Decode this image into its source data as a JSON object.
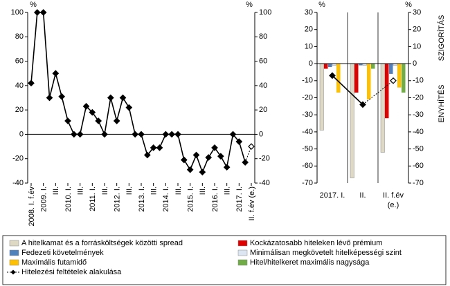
{
  "chart_data": [
    {
      "type": "line",
      "y_unit": "%",
      "y2_unit": "%",
      "categories": [
        "2008. I. f.év",
        null,
        "2009. I.",
        null,
        "III.",
        null,
        "2010. I.",
        null,
        "III.",
        null,
        "2011. I.",
        null,
        "III.",
        null,
        "2012. I.",
        null,
        "III.",
        null,
        "2013. I.",
        null,
        "III.",
        null,
        "2014. I.",
        null,
        "III.",
        null,
        "2015. I.",
        null,
        "III.",
        null,
        "2016. I.",
        null,
        "III.",
        null,
        "2017. I.",
        null,
        "II. f.év (e.)"
      ],
      "values": [
        42,
        100,
        100,
        30,
        50,
        31,
        11,
        0,
        0,
        23,
        18,
        11,
        0,
        30,
        11,
        30,
        22,
        0,
        0,
        -17,
        -11,
        -11,
        0,
        0,
        0,
        -21,
        -29,
        -17,
        -31,
        -19,
        -11,
        -18,
        -27,
        0,
        -6,
        -23,
        null
      ],
      "estimate_values": [
        null,
        null,
        null,
        null,
        null,
        null,
        null,
        null,
        null,
        null,
        null,
        null,
        null,
        null,
        null,
        null,
        null,
        null,
        null,
        null,
        null,
        null,
        null,
        null,
        null,
        null,
        null,
        null,
        null,
        null,
        null,
        null,
        null,
        null,
        null,
        null,
        -10
      ],
      "color": "#000000",
      "ylim": [
        -40,
        100
      ],
      "yticks": [
        -40,
        -20,
        0,
        20,
        40,
        60,
        80,
        100
      ],
      "y2lim": [
        -40,
        100
      ],
      "y2ticks": [
        -40,
        -20,
        0,
        20,
        40,
        60,
        80,
        100
      ]
    },
    {
      "type": "bar",
      "y_unit": "%",
      "y2_unit": "%",
      "y2_label_top": "SZIGORÍTÁS",
      "y2_label_bottom": "ENYHÍTÉS",
      "categories": [
        "2017. I.",
        "II.",
        "II. f.év (e.)"
      ],
      "series": [
        {
          "name": "A hitelkamat és a forrásköltségek közötti spread",
          "color": "#ddd9c3",
          "values": [
            -39,
            -67,
            -52
          ]
        },
        {
          "name": "Kockázatosabb hiteleken lévő prémium",
          "color": "#e00000",
          "values": [
            -3,
            -17,
            -32
          ]
        },
        {
          "name": "Fedezeti követelmények",
          "color": "#4f81bd",
          "values": [
            -2,
            -1,
            -6
          ]
        },
        {
          "name": "Minimálisan megkövetelt hitelképességi szint",
          "color": "#dce6f2",
          "values": [
            -1,
            -1,
            -1
          ]
        },
        {
          "name": "Maximális futamidő",
          "color": "#ffc000",
          "values": [
            -17,
            -21,
            -14
          ]
        },
        {
          "name": "Hitel/hitelkeret maximális nagysága",
          "color": "#70ad47",
          "values": [
            0,
            -3,
            -17
          ]
        }
      ],
      "line_series": {
        "name": "Hitelezési feltételek alakulása",
        "color": "#000000",
        "values": [
          -7,
          -24,
          null
        ],
        "estimate_values": [
          null,
          null,
          -10
        ]
      },
      "ylim": [
        -70,
        30
      ],
      "yticks": [
        -70,
        -60,
        -50,
        -40,
        -30,
        -20,
        -10,
        0,
        10,
        20,
        30
      ],
      "y2lim": [
        -70,
        30
      ],
      "y2ticks": [
        -70,
        -60,
        -50,
        -40,
        -30,
        -20,
        -10,
        0,
        10,
        20,
        30
      ]
    }
  ]
}
